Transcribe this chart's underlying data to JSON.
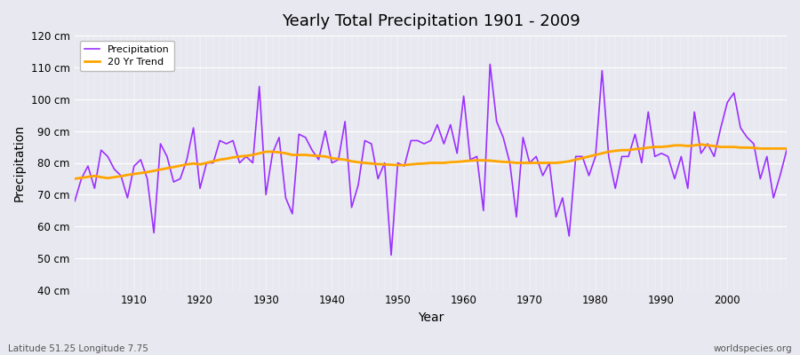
{
  "title": "Yearly Total Precipitation 1901 - 2009",
  "xlabel": "Year",
  "ylabel": "Precipitation",
  "subtitle_left": "Latitude 51.25 Longitude 7.75",
  "subtitle_right": "worldspecies.org",
  "ylim": [
    40,
    120
  ],
  "yticks": [
    40,
    50,
    60,
    70,
    80,
    90,
    100,
    110,
    120
  ],
  "ytick_labels": [
    "40 cm",
    "50 cm",
    "60 cm",
    "70 cm",
    "80 cm",
    "90 cm",
    "100 cm",
    "110 cm",
    "120 cm"
  ],
  "xlim": [
    1901,
    2009
  ],
  "xticks": [
    1910,
    1920,
    1930,
    1940,
    1950,
    1960,
    1970,
    1980,
    1990,
    2000
  ],
  "precip_color": "#9B30FF",
  "trend_color": "#FFA500",
  "bg_color": "#E8E8F0",
  "plot_bg_color": "#E8E8F0",
  "years": [
    1901,
    1902,
    1903,
    1904,
    1905,
    1906,
    1907,
    1908,
    1909,
    1910,
    1911,
    1912,
    1913,
    1914,
    1915,
    1916,
    1917,
    1918,
    1919,
    1920,
    1921,
    1922,
    1923,
    1924,
    1925,
    1926,
    1927,
    1928,
    1929,
    1930,
    1931,
    1932,
    1933,
    1934,
    1935,
    1936,
    1937,
    1938,
    1939,
    1940,
    1941,
    1942,
    1943,
    1944,
    1945,
    1946,
    1947,
    1948,
    1949,
    1950,
    1951,
    1952,
    1953,
    1954,
    1955,
    1956,
    1957,
    1958,
    1959,
    1960,
    1961,
    1962,
    1963,
    1964,
    1965,
    1966,
    1967,
    1968,
    1969,
    1970,
    1971,
    1972,
    1973,
    1974,
    1975,
    1976,
    1977,
    1978,
    1979,
    1980,
    1981,
    1982,
    1983,
    1984,
    1985,
    1986,
    1987,
    1988,
    1989,
    1990,
    1991,
    1992,
    1993,
    1994,
    1995,
    1996,
    1997,
    1998,
    1999,
    2000,
    2001,
    2002,
    2003,
    2004,
    2005,
    2006,
    2007,
    2008,
    2009
  ],
  "precipitation": [
    68,
    75,
    79,
    72,
    84,
    82,
    78,
    76,
    69,
    79,
    81,
    75,
    58,
    86,
    82,
    74,
    75,
    81,
    91,
    72,
    80,
    80,
    87,
    86,
    87,
    80,
    82,
    80,
    104,
    70,
    83,
    88,
    69,
    64,
    89,
    88,
    84,
    81,
    90,
    80,
    81,
    93,
    66,
    73,
    87,
    86,
    75,
    80,
    51,
    80,
    79,
    87,
    87,
    86,
    87,
    92,
    86,
    92,
    83,
    101,
    81,
    82,
    65,
    111,
    93,
    88,
    80,
    63,
    88,
    80,
    82,
    76,
    80,
    63,
    69,
    57,
    82,
    82,
    76,
    82,
    109,
    82,
    72,
    82,
    82,
    89,
    80,
    96,
    82,
    83,
    82,
    75,
    82,
    72,
    96,
    83,
    86,
    82,
    91,
    99,
    102,
    91,
    88,
    86,
    75,
    82,
    69,
    76,
    84
  ],
  "trend": [
    75.0,
    75.3,
    75.6,
    75.9,
    75.5,
    75.2,
    75.5,
    75.8,
    76.2,
    76.5,
    76.8,
    77.1,
    77.5,
    77.9,
    78.3,
    78.7,
    79.1,
    79.5,
    79.8,
    79.5,
    80.0,
    80.5,
    81.0,
    81.3,
    81.7,
    82.0,
    82.2,
    82.5,
    83.0,
    83.5,
    83.5,
    83.3,
    83.0,
    82.5,
    82.5,
    82.5,
    82.3,
    82.2,
    82.0,
    81.5,
    81.2,
    81.0,
    80.5,
    80.2,
    80.0,
    79.8,
    79.6,
    79.5,
    79.4,
    79.3,
    79.3,
    79.5,
    79.7,
    79.8,
    80.0,
    80.0,
    80.0,
    80.2,
    80.3,
    80.5,
    80.7,
    80.8,
    80.8,
    80.7,
    80.5,
    80.3,
    80.2,
    80.0,
    80.0,
    80.0,
    80.0,
    80.0,
    80.0,
    80.0,
    80.2,
    80.5,
    81.0,
    81.5,
    82.0,
    82.5,
    83.0,
    83.5,
    83.8,
    84.0,
    84.0,
    84.3,
    84.5,
    84.8,
    85.0,
    85.0,
    85.2,
    85.5,
    85.5,
    85.3,
    85.5,
    85.8,
    85.5,
    85.3,
    85.0,
    85.0,
    85.0,
    84.8,
    84.8,
    84.7,
    84.5,
    84.5,
    84.5,
    84.5,
    84.5
  ]
}
